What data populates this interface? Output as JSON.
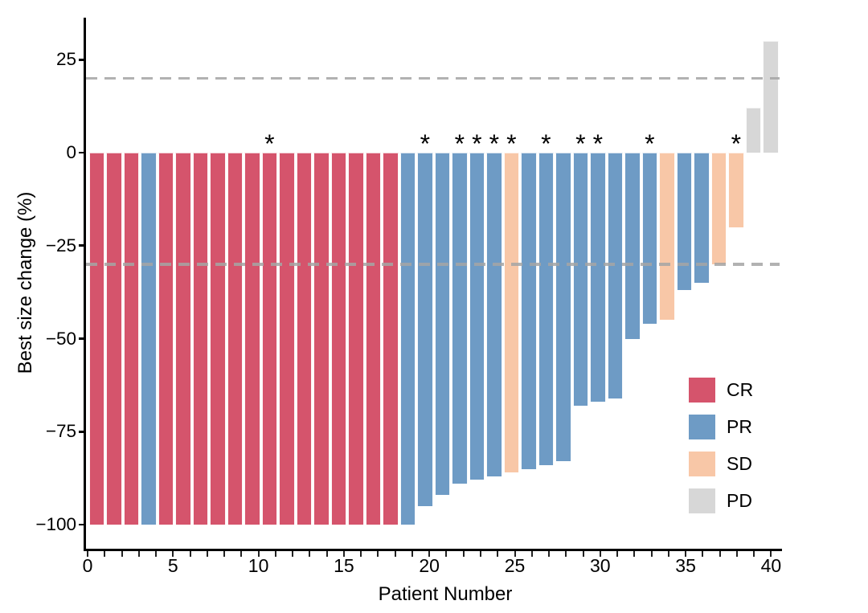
{
  "chart_data": {
    "type": "bar",
    "variant": "waterfall",
    "title": "",
    "xlabel": "Patient Number",
    "ylabel": "Best size change (%)",
    "x_tick_labels": [
      0,
      5,
      10,
      15,
      20,
      25,
      30,
      35,
      40
    ],
    "x_minor_ticks_every": 1,
    "x_axis_range": [
      0,
      40
    ],
    "y_ticks": [
      25,
      0,
      -25,
      -50,
      -75,
      -100
    ],
    "y_axis_range": [
      -106,
      36
    ],
    "grid": false,
    "reference_lines_pct": [
      20,
      -30
    ],
    "reference_line_style": "dashed",
    "reference_line_color": "#b4b4b4",
    "annotation_symbol": "*",
    "legend_position": "lower-right",
    "legend": [
      {
        "label": "CR",
        "color": "#d5546c"
      },
      {
        "label": "PR",
        "color": "#6e9bc5"
      },
      {
        "label": "SD",
        "color": "#f8c7a7"
      },
      {
        "label": "PD",
        "color": "#d7d7d7"
      }
    ],
    "patients": [
      {
        "patient": 1,
        "value": -100,
        "response": "CR",
        "annotated": false
      },
      {
        "patient": 2,
        "value": -100,
        "response": "CR",
        "annotated": false
      },
      {
        "patient": 3,
        "value": -100,
        "response": "CR",
        "annotated": false
      },
      {
        "patient": 4,
        "value": -100,
        "response": "PR",
        "annotated": false
      },
      {
        "patient": 5,
        "value": -100,
        "response": "CR",
        "annotated": false
      },
      {
        "patient": 6,
        "value": -100,
        "response": "CR",
        "annotated": false
      },
      {
        "patient": 7,
        "value": -100,
        "response": "CR",
        "annotated": false
      },
      {
        "patient": 8,
        "value": -100,
        "response": "CR",
        "annotated": false
      },
      {
        "patient": 9,
        "value": -100,
        "response": "CR",
        "annotated": false
      },
      {
        "patient": 10,
        "value": -100,
        "response": "CR",
        "annotated": false
      },
      {
        "patient": 11,
        "value": -100,
        "response": "CR",
        "annotated": true
      },
      {
        "patient": 12,
        "value": -100,
        "response": "CR",
        "annotated": false
      },
      {
        "patient": 13,
        "value": -100,
        "response": "CR",
        "annotated": false
      },
      {
        "patient": 14,
        "value": -100,
        "response": "CR",
        "annotated": false
      },
      {
        "patient": 15,
        "value": -100,
        "response": "CR",
        "annotated": false
      },
      {
        "patient": 16,
        "value": -100,
        "response": "CR",
        "annotated": false
      },
      {
        "patient": 17,
        "value": -100,
        "response": "CR",
        "annotated": false
      },
      {
        "patient": 18,
        "value": -100,
        "response": "CR",
        "annotated": false
      },
      {
        "patient": 19,
        "value": -100,
        "response": "PR",
        "annotated": false
      },
      {
        "patient": 20,
        "value": -95,
        "response": "PR",
        "annotated": true
      },
      {
        "patient": 21,
        "value": -92,
        "response": "PR",
        "annotated": false
      },
      {
        "patient": 22,
        "value": -89,
        "response": "PR",
        "annotated": true
      },
      {
        "patient": 23,
        "value": -88,
        "response": "PR",
        "annotated": true
      },
      {
        "patient": 24,
        "value": -87,
        "response": "PR",
        "annotated": true
      },
      {
        "patient": 25,
        "value": -86,
        "response": "SD",
        "annotated": true
      },
      {
        "patient": 26,
        "value": -85,
        "response": "PR",
        "annotated": false
      },
      {
        "patient": 27,
        "value": -84,
        "response": "PR",
        "annotated": true
      },
      {
        "patient": 28,
        "value": -83,
        "response": "PR",
        "annotated": false
      },
      {
        "patient": 29,
        "value": -68,
        "response": "PR",
        "annotated": true
      },
      {
        "patient": 30,
        "value": -67,
        "response": "PR",
        "annotated": true
      },
      {
        "patient": 31,
        "value": -66,
        "response": "PR",
        "annotated": false
      },
      {
        "patient": 32,
        "value": -50,
        "response": "PR",
        "annotated": false
      },
      {
        "patient": 33,
        "value": -46,
        "response": "PR",
        "annotated": true
      },
      {
        "patient": 34,
        "value": -45,
        "response": "SD",
        "annotated": false
      },
      {
        "patient": 35,
        "value": -37,
        "response": "PR",
        "annotated": false
      },
      {
        "patient": 36,
        "value": -35,
        "response": "PR",
        "annotated": false
      },
      {
        "patient": 37,
        "value": -30,
        "response": "SD",
        "annotated": false
      },
      {
        "patient": 38,
        "value": -20,
        "response": "SD",
        "annotated": true
      },
      {
        "patient": 39,
        "value": 12,
        "response": "PD",
        "annotated": false
      },
      {
        "patient": 40,
        "value": 30,
        "response": "PD",
        "annotated": false
      }
    ]
  }
}
